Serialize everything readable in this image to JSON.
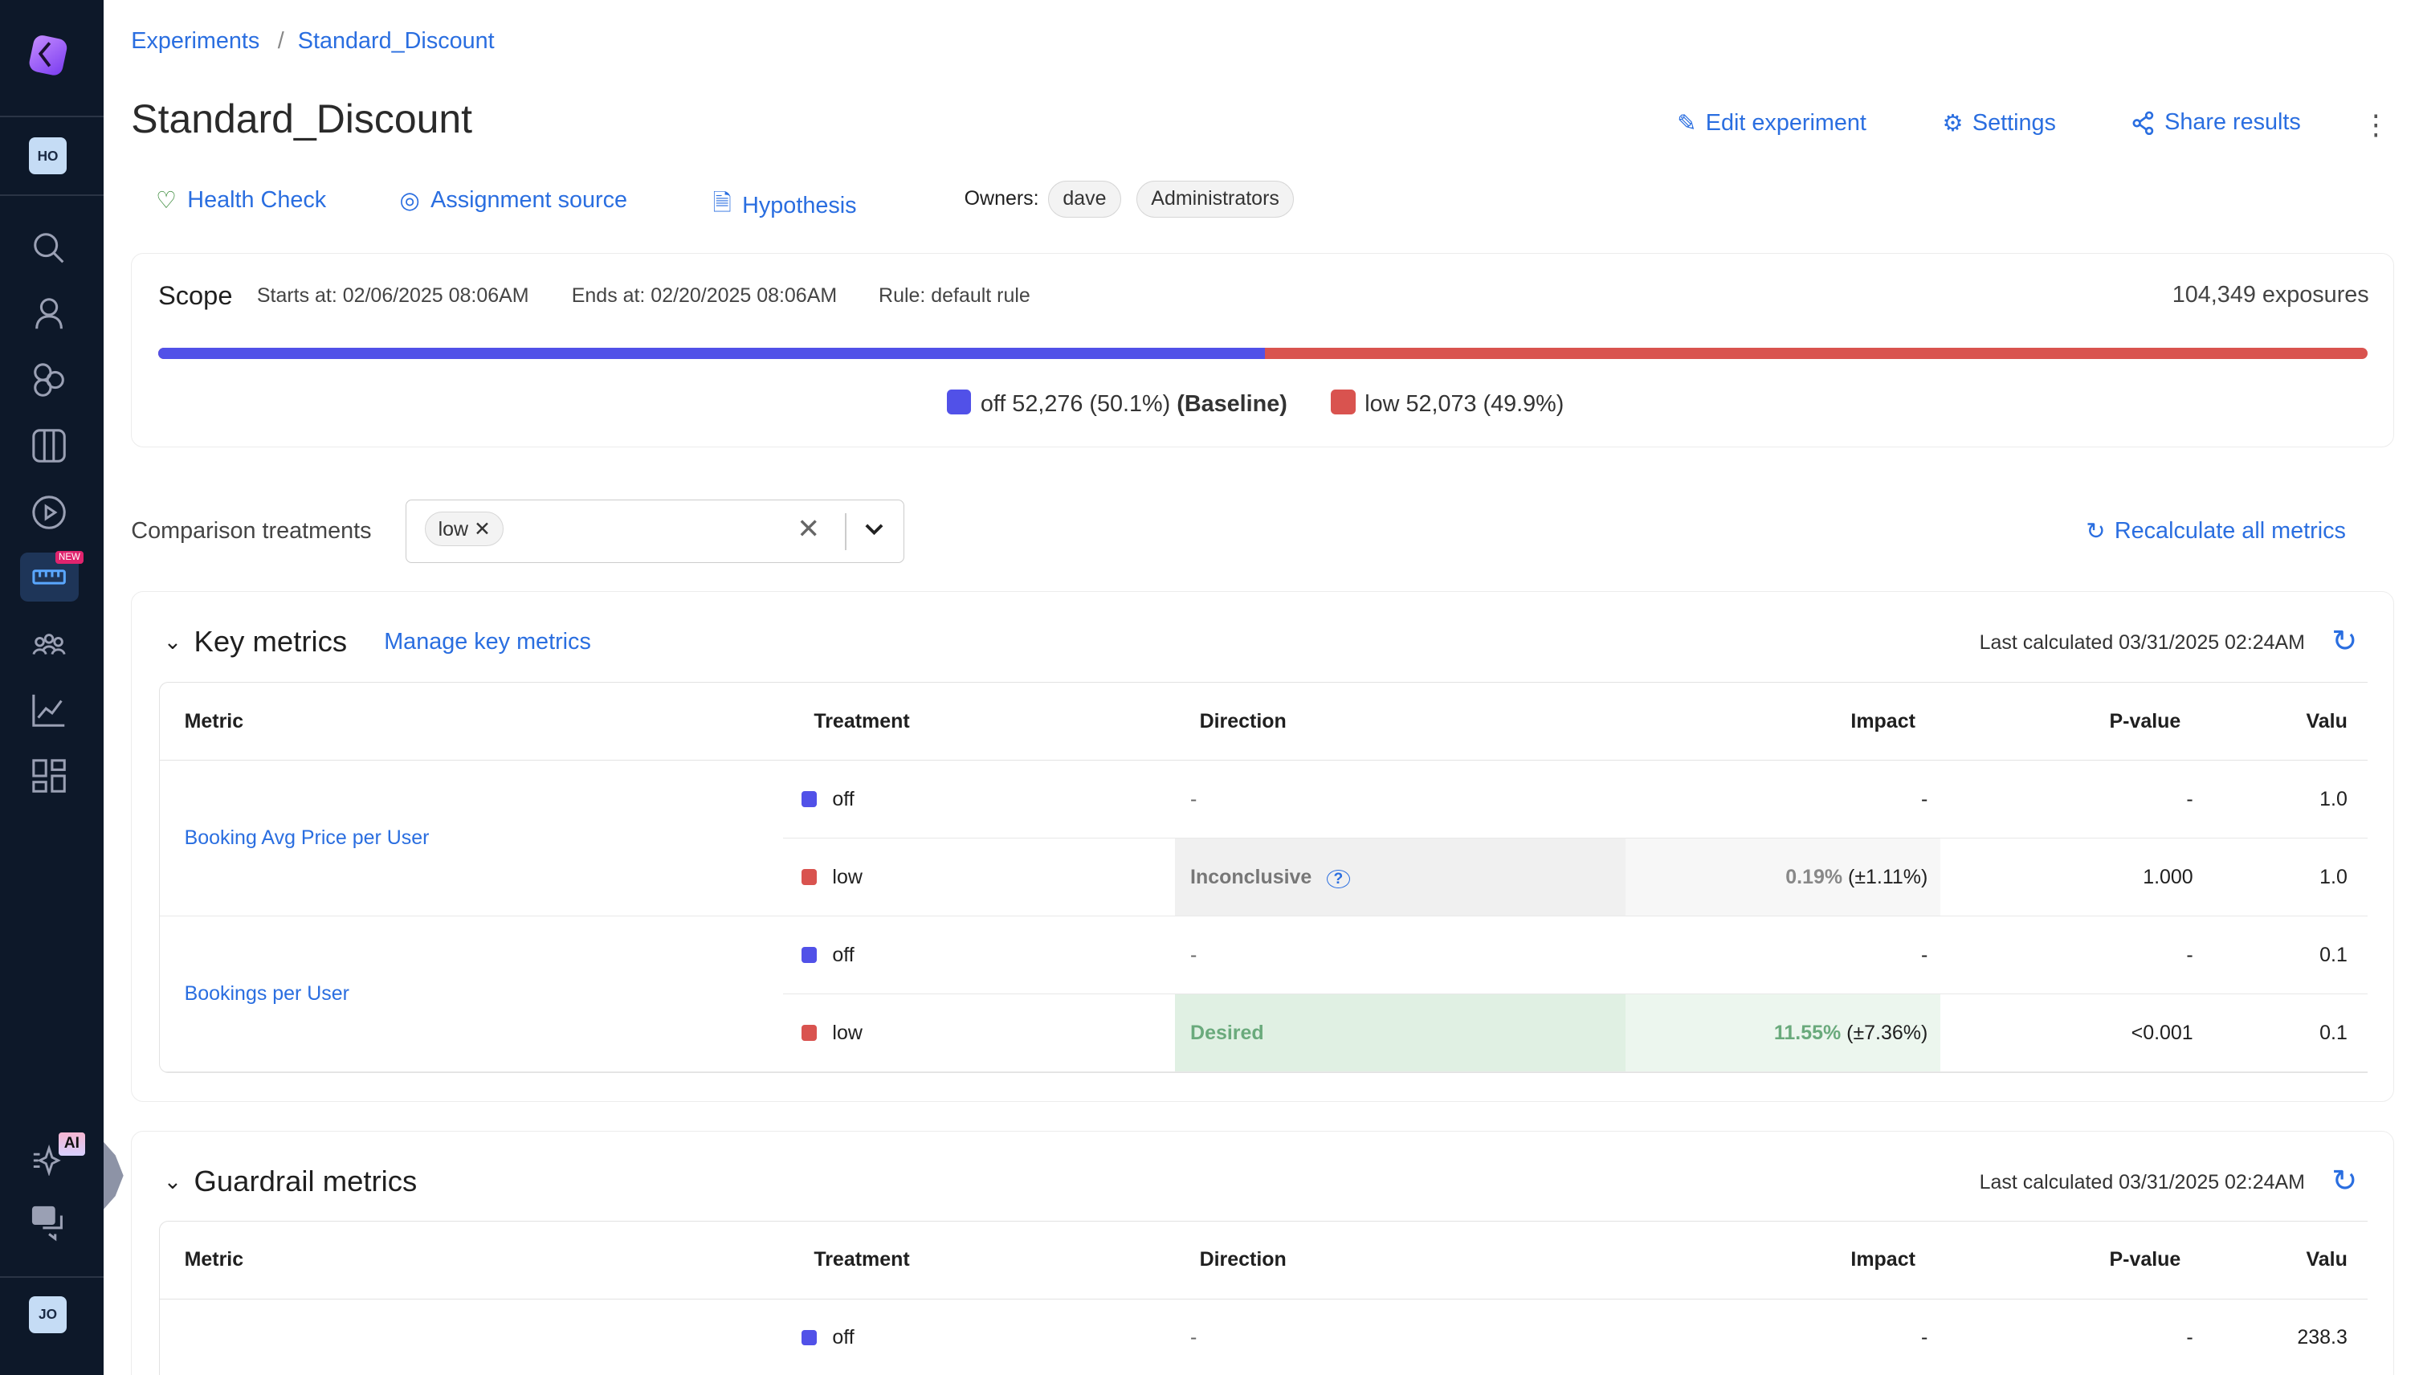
{
  "sidebar": {
    "workspace_avatar": "HO",
    "user_avatar": "JO",
    "new_badge": "NEW",
    "ai_badge": "AI",
    "icons": [
      "search-icon",
      "user-icon",
      "hexagons-icon",
      "columns-icon",
      "play-icon",
      "ruler-icon",
      "people-icon",
      "chart-icon",
      "grid-icon"
    ]
  },
  "breadcrumb": {
    "root": "Experiments",
    "current": "Standard_Discount"
  },
  "header": {
    "title": "Standard_Discount",
    "edit": "Edit experiment",
    "settings": "Settings",
    "share": "Share results"
  },
  "tabs": {
    "health": "Health Check",
    "assignment": "Assignment source",
    "hypothesis": "Hypothesis"
  },
  "owners": {
    "label": "Owners:",
    "items": [
      "dave",
      "Administrators"
    ]
  },
  "scope": {
    "title": "Scope",
    "starts": "Starts at: 02/06/2025 08:06AM",
    "ends": "Ends at: 02/20/2025 08:06AM",
    "rule": "Rule: default rule",
    "exposures": "104,349 exposures",
    "off_fraction": 0.501,
    "legend": [
      {
        "label": "off 52,276 (50.1%)",
        "extra": "(Baseline)",
        "color": "#5151e8"
      },
      {
        "label": "low 52,073 (49.9%)",
        "extra": "",
        "color": "#d9534f"
      }
    ]
  },
  "comparison": {
    "label": "Comparison treatments",
    "selected": "low",
    "recalc": "Recalculate all metrics"
  },
  "columns": [
    "Metric",
    "Treatment",
    "Direction",
    "Impact",
    "P-value",
    "Valu"
  ],
  "key": {
    "title": "Key metrics",
    "manage": "Manage key metrics",
    "last": "Last calculated 03/31/2025 02:24AM",
    "metrics": [
      {
        "name": "Booking Avg Price per User",
        "rows": [
          {
            "t": "off",
            "dir": "-",
            "imp": "-",
            "err": "",
            "p": "-",
            "v": "1.0"
          },
          {
            "t": "low",
            "dir": "Inconclusive",
            "imp": "0.19%",
            "err": "(±1.11%)",
            "p": "1.000",
            "v": "1.0"
          }
        ]
      },
      {
        "name": "Bookings per User",
        "rows": [
          {
            "t": "off",
            "dir": "-",
            "imp": "-",
            "err": "",
            "p": "-",
            "v": "0.1"
          },
          {
            "t": "low",
            "dir": "Desired",
            "imp": "11.55%",
            "err": "(±7.36%)",
            "p": "<0.001",
            "v": "0.1"
          }
        ]
      }
    ]
  },
  "guard": {
    "title": "Guardrail metrics",
    "last": "Last calculated 03/31/2025 02:24AM",
    "rows": [
      {
        "t": "off",
        "dir": "-",
        "imp": "-",
        "p": "-",
        "v": "238.3"
      }
    ]
  }
}
